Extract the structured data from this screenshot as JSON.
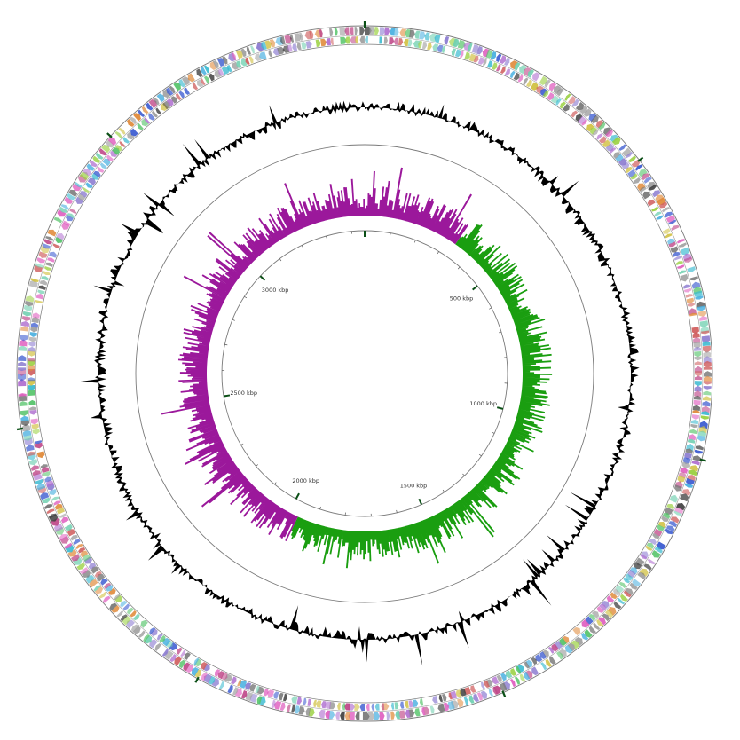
{
  "genome_map": {
    "genome_length_kbp": 3450,
    "tick_labels": [
      {
        "value_kbp": 500,
        "text": "500 kbp"
      },
      {
        "value_kbp": 1000,
        "text": "1000 kbp"
      },
      {
        "value_kbp": 1500,
        "text": "1500 kbp"
      },
      {
        "value_kbp": 2000,
        "text": "2000 kbp"
      },
      {
        "value_kbp": 2500,
        "text": "2500 kbp"
      },
      {
        "value_kbp": 3000,
        "text": "3000 kbp"
      }
    ],
    "colors": {
      "ring_outline": "#7a7a7a",
      "gc_content": "#000000",
      "gc_skew_positive": "#1a9e10",
      "gc_skew_negative": "#9b189b",
      "tick_major": "#0b4f16",
      "tick_minor": "#555555",
      "feature_palette": [
        "#c04a8a",
        "#3bbad0",
        "#7a7a7a",
        "#8b7bd0",
        "#e08a3a",
        "#56c46a",
        "#3a5ad0",
        "#d0c040",
        "#404040",
        "#70d0b0",
        "#b070d0",
        "#d06060",
        "#9ad040",
        "#4ab0e0",
        "#e060c0",
        "#a0a0a0"
      ]
    }
  }
}
